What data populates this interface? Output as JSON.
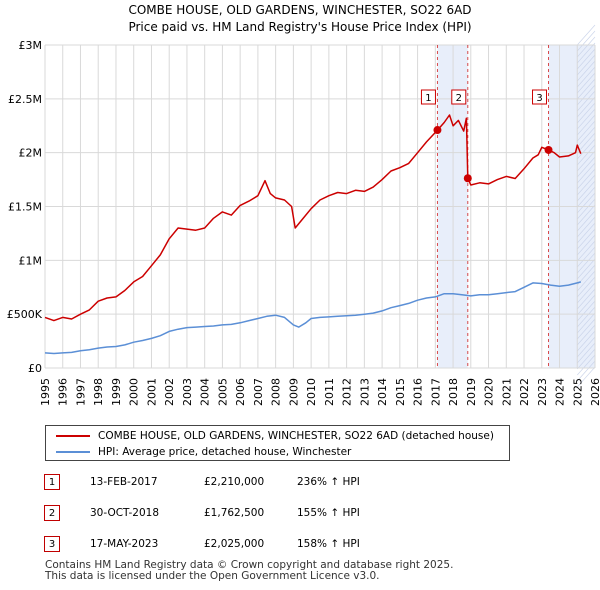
{
  "chart_data": {
    "type": "line",
    "title": "COMBE HOUSE, OLD GARDENS, WINCHESTER, SO22 6AD",
    "subtitle": "Price paid vs. HM Land Registry's House Price Index (HPI)",
    "xlim": [
      1995,
      2026
    ],
    "ylim": [
      0,
      3000000
    ],
    "x_ticks": [
      "1995",
      "1996",
      "1997",
      "1998",
      "1999",
      "2000",
      "2001",
      "2002",
      "2003",
      "2004",
      "2005",
      "2006",
      "2007",
      "2008",
      "2009",
      "2010",
      "2011",
      "2012",
      "2013",
      "2014",
      "2015",
      "2016",
      "2017",
      "2018",
      "2019",
      "2020",
      "2021",
      "2022",
      "2023",
      "2024",
      "2025",
      "2026"
    ],
    "y_ticks": [
      {
        "value": 0,
        "label": "£0"
      },
      {
        "value": 500000,
        "label": "£500K"
      },
      {
        "value": 1000000,
        "label": "£1M"
      },
      {
        "value": 1500000,
        "label": "£1.5M"
      },
      {
        "value": 2000000,
        "label": "£2M"
      },
      {
        "value": 2500000,
        "label": "£2.5M"
      },
      {
        "value": 3000000,
        "label": "£3M"
      }
    ],
    "shaded_ranges": [
      [
        2017.12,
        2018.83
      ],
      [
        2023.38,
        2025.0
      ],
      [
        2025.0,
        2026.0
      ]
    ],
    "series": [
      {
        "name": "COMBE HOUSE, OLD GARDENS, WINCHESTER, SO22 6AD (detached house)",
        "color": "#cc0000",
        "x": [
          1995.0,
          1995.5,
          1996.0,
          1996.5,
          1997.0,
          1997.5,
          1998.0,
          1998.5,
          1999.0,
          1999.5,
          2000.0,
          2000.5,
          2001.0,
          2001.5,
          2002.0,
          2002.5,
          2003.0,
          2003.5,
          2004.0,
          2004.5,
          2005.0,
          2005.5,
          2006.0,
          2006.5,
          2007.0,
          2007.4,
          2007.7,
          2008.0,
          2008.5,
          2008.9,
          2009.1,
          2009.5,
          2010.0,
          2010.5,
          2011.0,
          2011.5,
          2012.0,
          2012.5,
          2013.0,
          2013.5,
          2014.0,
          2014.5,
          2015.0,
          2015.5,
          2016.0,
          2016.5,
          2017.12,
          2017.5,
          2017.8,
          2018.0,
          2018.3,
          2018.6,
          2018.75,
          2018.83,
          2019.0,
          2019.5,
          2020.0,
          2020.5,
          2021.0,
          2021.5,
          2022.0,
          2022.5,
          2022.8,
          2023.0,
          2023.38,
          2023.7,
          2024.0,
          2024.5,
          2024.9,
          2025.0,
          2025.2
        ],
        "y": [
          470000,
          440000,
          470000,
          455000,
          500000,
          540000,
          620000,
          650000,
          660000,
          720000,
          800000,
          850000,
          950000,
          1050000,
          1200000,
          1300000,
          1290000,
          1280000,
          1300000,
          1390000,
          1450000,
          1420000,
          1510000,
          1550000,
          1600000,
          1740000,
          1620000,
          1580000,
          1560000,
          1500000,
          1300000,
          1380000,
          1480000,
          1560000,
          1600000,
          1630000,
          1620000,
          1650000,
          1640000,
          1680000,
          1750000,
          1830000,
          1860000,
          1900000,
          2000000,
          2100000,
          2210000,
          2280000,
          2350000,
          2250000,
          2300000,
          2200000,
          2320000,
          1762500,
          1700000,
          1720000,
          1710000,
          1750000,
          1780000,
          1760000,
          1850000,
          1950000,
          1980000,
          2050000,
          2025000,
          2000000,
          1960000,
          1970000,
          2000000,
          2070000,
          1990000
        ]
      },
      {
        "name": "HPI: Average price, detached house, Winchester",
        "color": "#5b8fd6",
        "x": [
          1995.0,
          1995.5,
          1996.0,
          1996.5,
          1997.0,
          1997.5,
          1998.0,
          1998.5,
          1999.0,
          1999.5,
          2000.0,
          2000.5,
          2001.0,
          2001.5,
          2002.0,
          2002.5,
          2003.0,
          2003.5,
          2004.0,
          2004.5,
          2005.0,
          2005.5,
          2006.0,
          2006.5,
          2007.0,
          2007.5,
          2008.0,
          2008.5,
          2009.0,
          2009.3,
          2009.7,
          2010.0,
          2010.5,
          2011.0,
          2011.5,
          2012.0,
          2012.5,
          2013.0,
          2013.5,
          2014.0,
          2014.5,
          2015.0,
          2015.5,
          2016.0,
          2016.5,
          2017.0,
          2017.5,
          2018.0,
          2018.5,
          2019.0,
          2019.5,
          2020.0,
          2020.5,
          2021.0,
          2021.5,
          2022.0,
          2022.5,
          2023.0,
          2023.5,
          2024.0,
          2024.5,
          2025.0,
          2025.2
        ],
        "y": [
          140000,
          135000,
          140000,
          145000,
          160000,
          170000,
          185000,
          195000,
          200000,
          215000,
          240000,
          255000,
          275000,
          300000,
          340000,
          360000,
          375000,
          380000,
          385000,
          390000,
          400000,
          405000,
          420000,
          440000,
          460000,
          480000,
          490000,
          470000,
          400000,
          380000,
          420000,
          460000,
          470000,
          475000,
          480000,
          485000,
          490000,
          500000,
          510000,
          530000,
          560000,
          580000,
          600000,
          630000,
          650000,
          660000,
          690000,
          690000,
          680000,
          670000,
          680000,
          680000,
          690000,
          700000,
          710000,
          750000,
          790000,
          785000,
          770000,
          760000,
          770000,
          790000,
          800000
        ]
      }
    ],
    "sales": [
      {
        "label": "1",
        "x": 2017.12,
        "y": 2210000
      },
      {
        "label": "2",
        "x": 2018.83,
        "y": 1762500
      },
      {
        "label": "3",
        "x": 2023.38,
        "y": 2025000
      }
    ]
  },
  "legend": {
    "property": "COMBE HOUSE, OLD GARDENS, WINCHESTER, SO22 6AD (detached house)",
    "hpi": "HPI: Average price, detached house, Winchester"
  },
  "transactions": [
    {
      "num": "1",
      "date": "13-FEB-2017",
      "price": "£2,210,000",
      "hpi": "236% ↑ HPI"
    },
    {
      "num": "2",
      "date": "30-OCT-2018",
      "price": "£1,762,500",
      "hpi": "155% ↑ HPI"
    },
    {
      "num": "3",
      "date": "17-MAY-2023",
      "price": "£2,025,000",
      "hpi": "158% ↑ HPI"
    }
  ],
  "footer": {
    "line1": "Contains HM Land Registry data © Crown copyright and database right 2025.",
    "line2": "This data is licensed under the Open Government Licence v3.0."
  },
  "colors": {
    "property": "#cc0000",
    "hpi": "#5b8fd6",
    "shade": "#e8eefa",
    "grid": "#d9d9d9"
  }
}
